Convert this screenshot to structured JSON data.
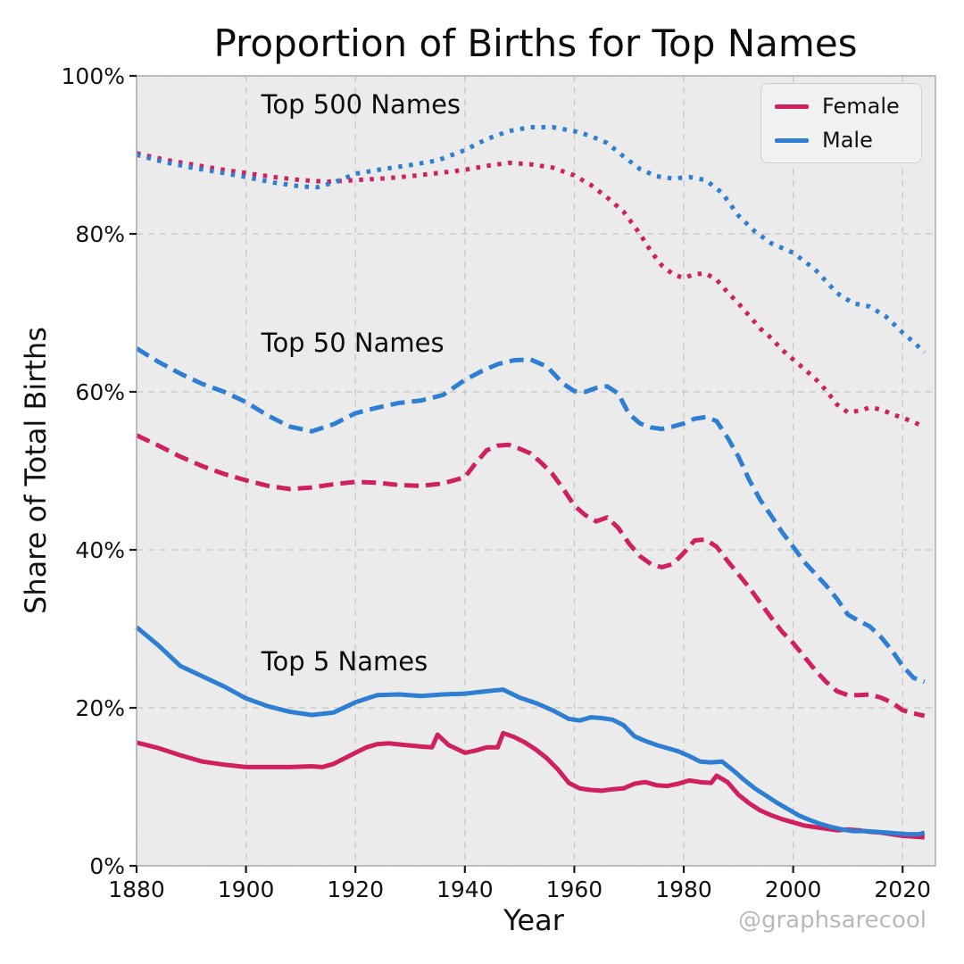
{
  "figure": {
    "title": "Proportion of Births for Top Names",
    "xlabel": "Year",
    "ylabel": "Share of Total Births",
    "watermark": "@graphsarecool"
  },
  "legend": {
    "items": [
      {
        "label": "Female",
        "color": "#d0205f"
      },
      {
        "label": "Male",
        "color": "#2e7ed3"
      }
    ]
  },
  "chart_data": {
    "type": "line",
    "title": "Proportion of Births for Top Names",
    "xlabel": "Year",
    "ylabel": "Share of Total Births",
    "xlim": [
      1880,
      2026
    ],
    "ylim": [
      0,
      100
    ],
    "xticks": [
      1880,
      1900,
      1920,
      1940,
      1960,
      1980,
      2000,
      2020
    ],
    "yticks": [
      0,
      20,
      40,
      60,
      80,
      100
    ],
    "ytick_suffix": "%",
    "grid": true,
    "legend_position": "upper right",
    "plot_bg": "#ebebeb",
    "grid_color": "#c6c6c6",
    "spine_color": "#b0b0b0",
    "tick_color": "#1a1a1a",
    "annotations": [
      {
        "label": "Top 500 Names",
        "x": 1921.0,
        "y": 96.4
      },
      {
        "label": "Top 50 Names",
        "x": 1919.5,
        "y": 66.2
      },
      {
        "label": "Top 5 Names",
        "x": 1918.0,
        "y": 25.9
      }
    ],
    "series": [
      {
        "name": "Top 500 Female",
        "group": "Top 500 Names",
        "sex": "Female",
        "style": "dotted",
        "color": "#d0205f",
        "x": [
          1880,
          1885,
          1890,
          1895,
          1900,
          1905,
          1910,
          1915,
          1920,
          1925,
          1930,
          1935,
          1940,
          1944,
          1948,
          1952,
          1956,
          1960,
          1963,
          1966,
          1969,
          1972,
          1974,
          1976,
          1978,
          1980,
          1982,
          1984,
          1986,
          1988,
          1990,
          1992,
          1994,
          1996,
          1998,
          2000,
          2002,
          2004,
          2006,
          2008,
          2010,
          2012,
          2014,
          2016,
          2018,
          2020,
          2022,
          2024
        ],
        "y": [
          90.2,
          89.4,
          88.8,
          88.2,
          87.7,
          87.2,
          86.8,
          86.6,
          86.8,
          87.0,
          87.3,
          87.7,
          88.1,
          88.6,
          89.0,
          88.8,
          88.4,
          87.4,
          86.2,
          84.6,
          82.8,
          80.0,
          77.8,
          76.0,
          74.9,
          74.4,
          74.9,
          75.0,
          74.2,
          72.6,
          71.2,
          69.6,
          68.0,
          66.8,
          65.3,
          64.1,
          62.9,
          61.7,
          60.2,
          58.4,
          57.4,
          57.6,
          58.0,
          57.8,
          57.2,
          56.7,
          56.2,
          55.5
        ]
      },
      {
        "name": "Top 500 Male",
        "group": "Top 500 Names",
        "sex": "Male",
        "style": "dotted",
        "color": "#2e7ed3",
        "x": [
          1880,
          1885,
          1890,
          1895,
          1900,
          1905,
          1910,
          1913,
          1916,
          1920,
          1925,
          1930,
          1935,
          1940,
          1944,
          1948,
          1952,
          1956,
          1960,
          1963,
          1966,
          1969,
          1972,
          1975,
          1978,
          1981,
          1984,
          1987,
          1990,
          1993,
          1996,
          2000,
          2004,
          2008,
          2011,
          2014,
          2017,
          2020,
          2022,
          2024
        ],
        "y": [
          90.0,
          89.1,
          88.4,
          87.8,
          87.2,
          86.5,
          86.0,
          85.9,
          86.5,
          87.6,
          88.2,
          88.7,
          89.3,
          90.6,
          92.0,
          93.0,
          93.5,
          93.5,
          93.0,
          92.4,
          91.5,
          89.8,
          88.2,
          87.3,
          87.0,
          87.2,
          86.8,
          85.2,
          82.3,
          80.3,
          78.8,
          77.6,
          75.5,
          72.5,
          71.2,
          70.8,
          69.5,
          67.5,
          66.3,
          65.0
        ]
      },
      {
        "name": "Top 50 Female",
        "group": "Top 50 Names",
        "sex": "Female",
        "style": "dashed",
        "color": "#d0205f",
        "x": [
          1880,
          1884,
          1888,
          1892,
          1896,
          1900,
          1904,
          1908,
          1912,
          1916,
          1920,
          1924,
          1928,
          1932,
          1936,
          1940,
          1942,
          1944,
          1946,
          1948,
          1950,
          1952,
          1954,
          1956,
          1958,
          1960,
          1962,
          1964,
          1966,
          1968,
          1970,
          1972,
          1974,
          1976,
          1978,
          1980,
          1982,
          1984,
          1986,
          1988,
          1990,
          1992,
          1994,
          1996,
          1998,
          2000,
          2002,
          2004,
          2006,
          2008,
          2010,
          2012,
          2014,
          2016,
          2018,
          2020,
          2022,
          2024
        ],
        "y": [
          54.5,
          53.2,
          51.8,
          50.6,
          49.6,
          48.8,
          48.1,
          47.7,
          47.9,
          48.3,
          48.6,
          48.5,
          48.2,
          48.1,
          48.4,
          49.2,
          51.0,
          52.6,
          53.2,
          53.3,
          52.8,
          52.2,
          51.0,
          49.6,
          47.7,
          45.6,
          44.4,
          43.6,
          44.1,
          42.8,
          40.8,
          39.2,
          38.2,
          37.8,
          38.2,
          39.6,
          41.2,
          41.3,
          40.4,
          38.6,
          36.9,
          35.2,
          33.3,
          31.4,
          29.6,
          28.2,
          26.5,
          24.8,
          23.3,
          22.1,
          21.6,
          21.6,
          21.7,
          21.3,
          20.7,
          19.7,
          19.3,
          19.0
        ]
      },
      {
        "name": "Top 50 Male",
        "group": "Top 50 Names",
        "sex": "Male",
        "style": "dashed",
        "color": "#2e7ed3",
        "x": [
          1880,
          1884,
          1888,
          1892,
          1896,
          1900,
          1904,
          1908,
          1912,
          1916,
          1920,
          1924,
          1928,
          1932,
          1936,
          1940,
          1943,
          1946,
          1949,
          1952,
          1955,
          1958,
          1960,
          1962,
          1964,
          1966,
          1968,
          1970,
          1972,
          1974,
          1976,
          1978,
          1980,
          1982,
          1984,
          1986,
          1988,
          1990,
          1992,
          1994,
          1996,
          1998,
          2000,
          2002,
          2004,
          2006,
          2008,
          2010,
          2012,
          2014,
          2016,
          2018,
          2020,
          2022,
          2024
        ],
        "y": [
          65.5,
          63.8,
          62.3,
          61.0,
          60.0,
          58.7,
          57.0,
          55.6,
          55.0,
          55.9,
          57.3,
          58.0,
          58.6,
          58.9,
          59.6,
          61.5,
          62.6,
          63.5,
          64.0,
          64.1,
          63.2,
          61.0,
          60.1,
          60.0,
          60.5,
          60.7,
          59.8,
          57.2,
          56.0,
          55.5,
          55.3,
          55.6,
          56.0,
          56.6,
          56.8,
          56.3,
          54.2,
          51.8,
          48.8,
          46.3,
          44.3,
          42.2,
          40.4,
          38.5,
          37.0,
          35.5,
          33.8,
          31.8,
          31.0,
          30.3,
          29.0,
          27.3,
          25.3,
          23.8,
          23.3
        ]
      },
      {
        "name": "Top 5 Female",
        "group": "Top 5 Names",
        "sex": "Female",
        "style": "solid",
        "color": "#d0205f",
        "x": [
          1880,
          1884,
          1888,
          1892,
          1896,
          1900,
          1904,
          1908,
          1912,
          1914,
          1916,
          1918,
          1920,
          1922,
          1924,
          1926,
          1929,
          1932,
          1934,
          1935,
          1937,
          1940,
          1942,
          1944,
          1946,
          1947,
          1949,
          1951,
          1953,
          1955,
          1957,
          1959,
          1961,
          1963,
          1965,
          1967,
          1969,
          1971,
          1973,
          1975,
          1977,
          1979,
          1981,
          1983,
          1985,
          1986,
          1988,
          1990,
          1992,
          1994,
          1996,
          1998,
          2000,
          2002,
          2004,
          2006,
          2008,
          2010,
          2012,
          2014,
          2016,
          2018,
          2020,
          2022,
          2024
        ],
        "y": [
          15.6,
          14.9,
          14.0,
          13.2,
          12.8,
          12.5,
          12.5,
          12.5,
          12.6,
          12.5,
          12.9,
          13.6,
          14.3,
          15.0,
          15.4,
          15.5,
          15.3,
          15.1,
          15.0,
          16.6,
          15.3,
          14.3,
          14.6,
          15.0,
          15.0,
          16.8,
          16.3,
          15.6,
          14.7,
          13.6,
          12.2,
          10.5,
          9.8,
          9.6,
          9.5,
          9.7,
          9.8,
          10.4,
          10.6,
          10.2,
          10.1,
          10.4,
          10.8,
          10.6,
          10.5,
          11.4,
          10.6,
          9.0,
          7.9,
          7.0,
          6.4,
          5.9,
          5.5,
          5.1,
          4.9,
          4.7,
          4.5,
          4.6,
          4.5,
          4.3,
          4.2,
          4.0,
          3.8,
          3.7,
          3.6
        ]
      },
      {
        "name": "Top 5 Male",
        "group": "Top 5 Names",
        "sex": "Male",
        "style": "solid",
        "color": "#2e7ed3",
        "x": [
          1880,
          1884,
          1888,
          1892,
          1896,
          1900,
          1904,
          1908,
          1912,
          1916,
          1920,
          1924,
          1928,
          1932,
          1936,
          1940,
          1944,
          1947,
          1950,
          1953,
          1956,
          1959,
          1961,
          1963,
          1965,
          1967,
          1969,
          1971,
          1973,
          1975,
          1977,
          1979,
          1981,
          1983,
          1985,
          1987,
          1989,
          1991,
          1993,
          1995,
          1997,
          1999,
          2001,
          2003,
          2005,
          2007,
          2009,
          2011,
          2013,
          2015,
          2017,
          2019,
          2021,
          2023,
          2024
        ],
        "y": [
          30.2,
          27.9,
          25.3,
          24.0,
          22.7,
          21.2,
          20.2,
          19.5,
          19.1,
          19.4,
          20.7,
          21.6,
          21.7,
          21.5,
          21.7,
          21.8,
          22.1,
          22.3,
          21.3,
          20.6,
          19.7,
          18.6,
          18.4,
          18.8,
          18.7,
          18.5,
          17.8,
          16.4,
          15.8,
          15.3,
          14.9,
          14.5,
          13.9,
          13.2,
          13.1,
          13.2,
          12.1,
          10.9,
          9.8,
          8.9,
          8.0,
          7.2,
          6.4,
          5.8,
          5.3,
          4.9,
          4.6,
          4.4,
          4.4,
          4.3,
          4.2,
          4.1,
          4.0,
          4.0,
          4.2
        ]
      }
    ]
  }
}
